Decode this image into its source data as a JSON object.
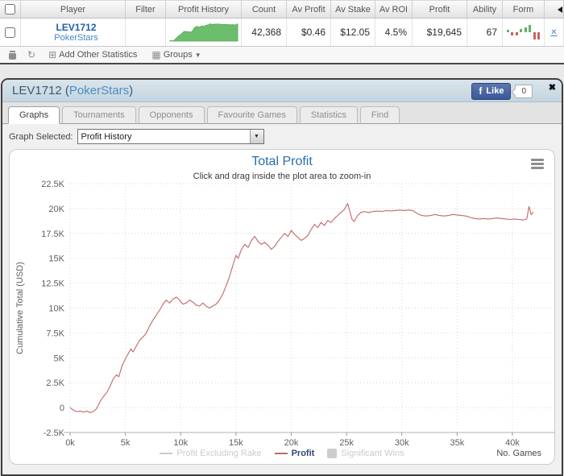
{
  "icons": {
    "refresh": "↻",
    "add_window": "⊞",
    "groups": "▦",
    "caret_down": "▼",
    "dropdown_arrow": "▼",
    "panel_close": "✖",
    "row_close": "✕",
    "facebook_f": "f"
  },
  "table": {
    "columns": [
      "",
      "Player",
      "Filter",
      "Profit History",
      "Count",
      "Av Profit",
      "Av Stake",
      "Av ROI",
      "Profit",
      "Ability",
      "Form",
      ""
    ],
    "row": {
      "player_name": "LEV1712",
      "site": "PokerStars",
      "count": "42,368",
      "av_profit": "$0.46",
      "av_stake": "$12.05",
      "av_roi": "4.5%",
      "profit": "$19,645",
      "ability": "67",
      "sparkline_color": "#6cbd6c",
      "sparkline_stroke": "#54a854",
      "form_up_color": "#63b363",
      "form_down_color": "#c4665e",
      "form_bars": [
        {
          "h": 3,
          "dir": "up"
        },
        {
          "h": 4,
          "dir": "down"
        },
        {
          "h": 4,
          "dir": "down"
        },
        {
          "h": 4,
          "dir": "up"
        },
        {
          "h": 6,
          "dir": "up"
        },
        {
          "h": 9,
          "dir": "up"
        },
        {
          "h": 9,
          "dir": "down"
        },
        {
          "h": 9,
          "dir": "down"
        }
      ]
    }
  },
  "toolbar": {
    "add_stats_label": "Add Other Statistics",
    "groups_label": "Groups"
  },
  "panel": {
    "title_prefix": "LEV1712 (",
    "title_site": "PokerStars",
    "title_suffix": ")",
    "like_label": "Like",
    "like_count": "0"
  },
  "tabs": [
    {
      "label": "Graphs",
      "active": true
    },
    {
      "label": "Tournaments",
      "active": false
    },
    {
      "label": "Opponents",
      "active": false
    },
    {
      "label": "Favourite Games",
      "active": false
    },
    {
      "label": "Statistics",
      "active": false
    },
    {
      "label": "Find",
      "active": false
    }
  ],
  "graph_selector": {
    "label": "Graph Selected:",
    "value": "Profit History"
  },
  "chart_data": {
    "type": "line",
    "title": "Total Profit",
    "subtitle": "Click and drag inside the plot area to zoom-in",
    "xlabel": "No. Games",
    "ylabel": "Cumulative Total (USD)",
    "grid": true,
    "legend_position": "bottom",
    "xlim": [
      0,
      43.5
    ],
    "ylim": [
      -2.5,
      22.5
    ],
    "x_ticks": [
      {
        "v": 0,
        "label": "0k"
      },
      {
        "v": 5,
        "label": "5k"
      },
      {
        "v": 10,
        "label": "10k"
      },
      {
        "v": 15,
        "label": "15k"
      },
      {
        "v": 20,
        "label": "20k"
      },
      {
        "v": 25,
        "label": "25k"
      },
      {
        "v": 30,
        "label": "30k"
      },
      {
        "v": 35,
        "label": "35k"
      },
      {
        "v": 40,
        "label": "40k"
      }
    ],
    "y_ticks": [
      {
        "v": -2.5,
        "label": "-2.5K"
      },
      {
        "v": 0,
        "label": "0"
      },
      {
        "v": 2.5,
        "label": "2.5K"
      },
      {
        "v": 5,
        "label": "5K"
      },
      {
        "v": 7.5,
        "label": "7.5K"
      },
      {
        "v": 10,
        "label": "10K"
      },
      {
        "v": 12.5,
        "label": "12.5K"
      },
      {
        "v": 15,
        "label": "15K"
      },
      {
        "v": 17.5,
        "label": "17.5K"
      },
      {
        "v": 20,
        "label": "20K"
      },
      {
        "v": 22.5,
        "label": "22.5K"
      }
    ],
    "legend": [
      {
        "name": "Profit Excluding Rake",
        "swatch": "line",
        "color": "#cccccc",
        "enabled": false
      },
      {
        "name": "Profit",
        "swatch": "line",
        "color": "#c36666",
        "enabled": true
      },
      {
        "name": "Significant Wins",
        "swatch": "box",
        "color": "#cccccc",
        "enabled": false
      }
    ],
    "series": [
      {
        "name": "Profit",
        "color": "#c36666",
        "points": [
          [
            0,
            0
          ],
          [
            0.3,
            -0.25
          ],
          [
            0.6,
            -0.4
          ],
          [
            0.9,
            -0.35
          ],
          [
            1.2,
            -0.45
          ],
          [
            1.5,
            -0.35
          ],
          [
            1.8,
            -0.5
          ],
          [
            2.1,
            -0.4
          ],
          [
            2.4,
            -0.1
          ],
          [
            2.7,
            0.6
          ],
          [
            3,
            1.1
          ],
          [
            3.3,
            1.5
          ],
          [
            3.6,
            2.1
          ],
          [
            3.9,
            2.9
          ],
          [
            4.2,
            3.3
          ],
          [
            4.4,
            3.1
          ],
          [
            4.7,
            4.2
          ],
          [
            5,
            4.9
          ],
          [
            5.3,
            5.5
          ],
          [
            5.5,
            5.9
          ],
          [
            5.7,
            5.6
          ],
          [
            6,
            6.2
          ],
          [
            6.3,
            6.8
          ],
          [
            6.6,
            7.1
          ],
          [
            6.9,
            7.5
          ],
          [
            7.2,
            8.2
          ],
          [
            7.5,
            8.8
          ],
          [
            7.8,
            9.3
          ],
          [
            8.1,
            9.8
          ],
          [
            8.4,
            10.4
          ],
          [
            8.7,
            10.8
          ],
          [
            9,
            10.5
          ],
          [
            9.3,
            10.9
          ],
          [
            9.6,
            11.1
          ],
          [
            9.9,
            10.8
          ],
          [
            10.2,
            10.4
          ],
          [
            10.5,
            10.5
          ],
          [
            10.8,
            10.8
          ],
          [
            11.1,
            10.6
          ],
          [
            11.4,
            10.3
          ],
          [
            11.7,
            10.2
          ],
          [
            12,
            10.5
          ],
          [
            12.3,
            10.2
          ],
          [
            12.6,
            10
          ],
          [
            12.9,
            10.2
          ],
          [
            13.2,
            10.4
          ],
          [
            13.5,
            10.8
          ],
          [
            13.8,
            11.4
          ],
          [
            14.1,
            12.2
          ],
          [
            14.4,
            13.1
          ],
          [
            14.7,
            14.2
          ],
          [
            15,
            15.3
          ],
          [
            15.2,
            15
          ],
          [
            15.5,
            15.9
          ],
          [
            15.8,
            16.4
          ],
          [
            16.1,
            16.1
          ],
          [
            16.4,
            16.8
          ],
          [
            16.7,
            17.2
          ],
          [
            17,
            16.7
          ],
          [
            17.3,
            16.4
          ],
          [
            17.6,
            16.6
          ],
          [
            17.9,
            16.3
          ],
          [
            18.2,
            15.9
          ],
          [
            18.5,
            16.2
          ],
          [
            18.8,
            16.7
          ],
          [
            19.1,
            17.1
          ],
          [
            19.4,
            17.5
          ],
          [
            19.7,
            17.2
          ],
          [
            20,
            17.8
          ],
          [
            20.3,
            17.4
          ],
          [
            20.6,
            17.1
          ],
          [
            20.9,
            16.8
          ],
          [
            21.2,
            17
          ],
          [
            21.5,
            17.3
          ],
          [
            21.8,
            17.9
          ],
          [
            22.1,
            18.4
          ],
          [
            22.4,
            18.1
          ],
          [
            22.7,
            18.6
          ],
          [
            23,
            18.3
          ],
          [
            23.3,
            18.8
          ],
          [
            23.6,
            18.6
          ],
          [
            23.9,
            19
          ],
          [
            24.2,
            19.3
          ],
          [
            24.5,
            19.6
          ],
          [
            24.8,
            19.9
          ],
          [
            25.1,
            20.5
          ],
          [
            25.3,
            19.7
          ],
          [
            25.5,
            18.9
          ],
          [
            25.7,
            18.7
          ],
          [
            26,
            19.3
          ],
          [
            26.3,
            19.6
          ],
          [
            26.6,
            19.7
          ],
          [
            27,
            19.6
          ],
          [
            27.4,
            19.7
          ],
          [
            27.8,
            19.75
          ],
          [
            28.2,
            19.7
          ],
          [
            28.6,
            19.8
          ],
          [
            29,
            19.75
          ],
          [
            29.4,
            19.8
          ],
          [
            29.8,
            19.85
          ],
          [
            30.2,
            19.8
          ],
          [
            30.6,
            19.85
          ],
          [
            31,
            19.8
          ],
          [
            31.4,
            19.5
          ],
          [
            31.8,
            19.3
          ],
          [
            32.2,
            19.25
          ],
          [
            32.6,
            19.3
          ],
          [
            33,
            19.4
          ],
          [
            33.4,
            19.3
          ],
          [
            33.8,
            19.25
          ],
          [
            34.2,
            19.3
          ],
          [
            34.6,
            19.4
          ],
          [
            35,
            19.35
          ],
          [
            35.4,
            19.3
          ],
          [
            35.8,
            19.25
          ],
          [
            36.2,
            19.1
          ],
          [
            36.6,
            19
          ],
          [
            37,
            18.95
          ],
          [
            37.4,
            19
          ],
          [
            37.8,
            18.95
          ],
          [
            38.2,
            19
          ],
          [
            38.6,
            19.05
          ],
          [
            39,
            19
          ],
          [
            39.4,
            18.95
          ],
          [
            39.8,
            18.9
          ],
          [
            40.2,
            18.95
          ],
          [
            40.6,
            18.9
          ],
          [
            41,
            18.85
          ],
          [
            41.3,
            18.95
          ],
          [
            41.5,
            20.2
          ],
          [
            41.7,
            19.4
          ],
          [
            41.9,
            19.65
          ]
        ]
      }
    ]
  }
}
